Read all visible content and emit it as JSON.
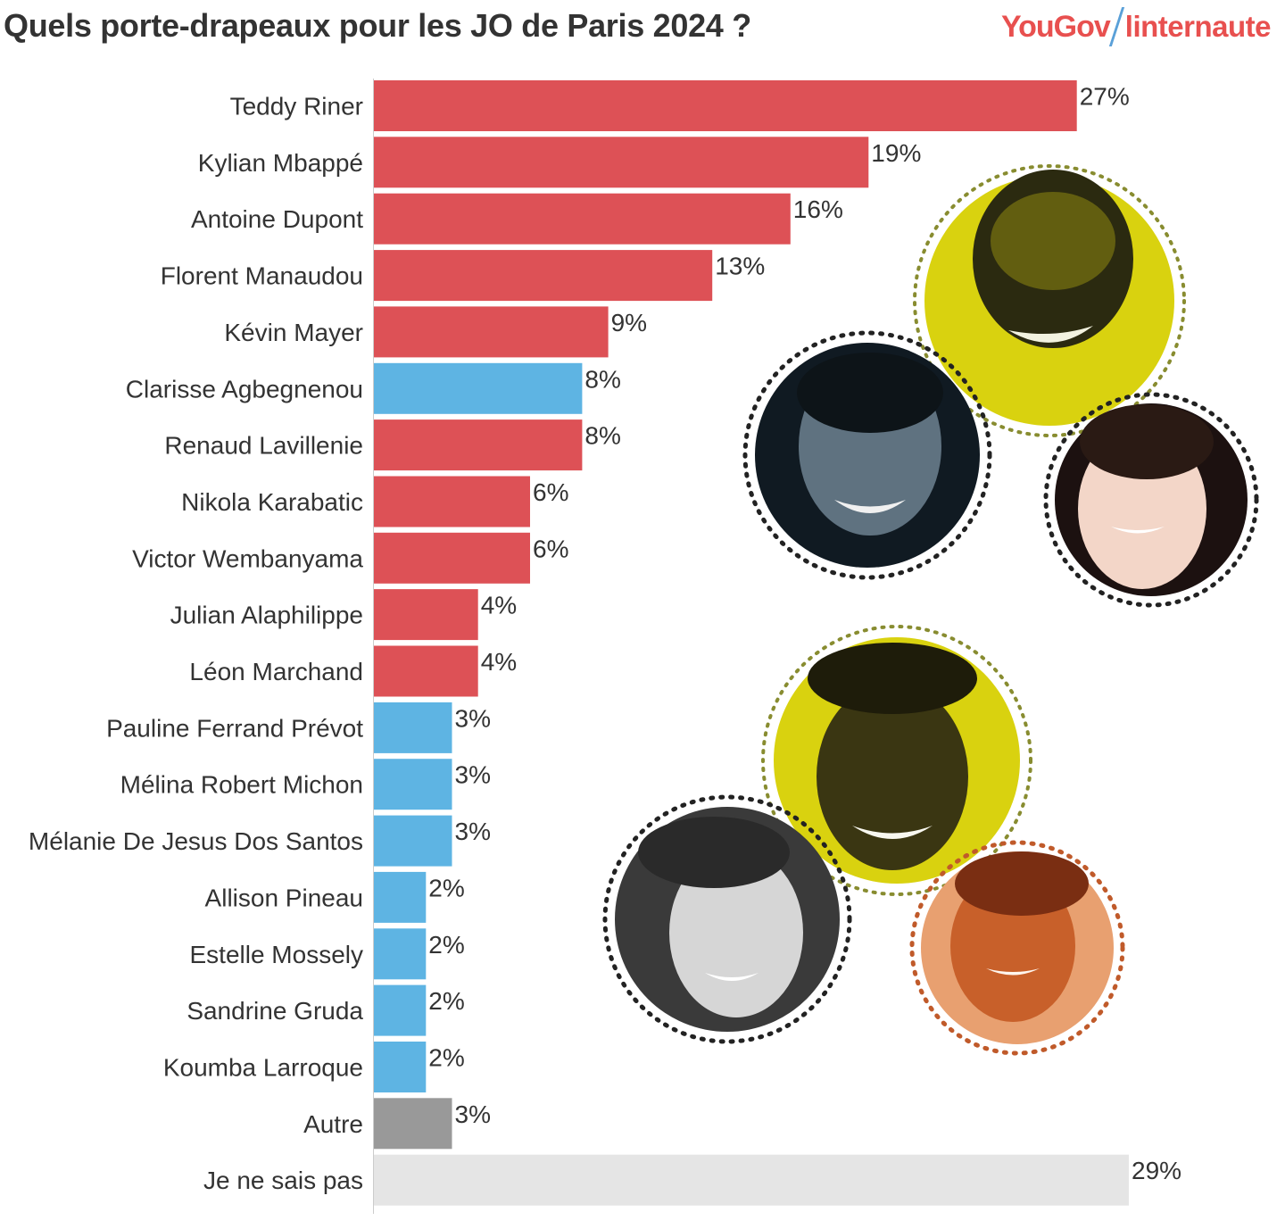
{
  "header": {
    "title": "Quels porte-drapeaux pour les JO de Paris 2024 ?",
    "brand_yougov": "YouGov",
    "brand_internaute": "linternaute"
  },
  "colors": {
    "male": "#dd5156",
    "female": "#5eb4e3",
    "other": "#999999",
    "unknown": "#e5e5e5",
    "text": "#333333"
  },
  "chart_data": {
    "type": "bar",
    "orientation": "horizontal",
    "title": "Quels porte-drapeaux pour les JO de Paris 2024 ?",
    "xlabel": "",
    "ylabel": "",
    "xlim": [
      0,
      29
    ],
    "unit": "%",
    "categories": [
      "Teddy Riner",
      "Kylian Mbappé",
      "Antoine Dupont",
      "Florent Manaudou",
      "Kévin Mayer",
      "Clarisse Agbegnenou",
      "Renaud Lavillenie",
      "Nikola Karabatic",
      "Victor Wembanyama",
      "Julian Alaphilippe",
      "Léon Marchand",
      "Pauline Ferrand Prévot",
      "Mélina Robert Michon",
      "Mélanie De Jesus Dos Santos",
      "Allison Pineau",
      "Estelle Mossely",
      "Sandrine Gruda",
      "Koumba Larroque",
      "Autre",
      "Je ne sais pas"
    ],
    "values": [
      27,
      19,
      16,
      13,
      9,
      8,
      8,
      6,
      6,
      4,
      4,
      3,
      3,
      3,
      2,
      2,
      2,
      2,
      3,
      29
    ],
    "value_labels": [
      "27%",
      "19%",
      "16%",
      "13%",
      "9%",
      "8%",
      "8%",
      "6%",
      "6%",
      "4%",
      "4%",
      "3%",
      "3%",
      "3%",
      "2%",
      "2%",
      "2%",
      "2%",
      "3%",
      "29%"
    ],
    "groups": [
      "male",
      "male",
      "male",
      "male",
      "male",
      "female",
      "male",
      "male",
      "male",
      "male",
      "male",
      "female",
      "female",
      "female",
      "female",
      "female",
      "female",
      "female",
      "other",
      "unknown"
    ]
  }
}
